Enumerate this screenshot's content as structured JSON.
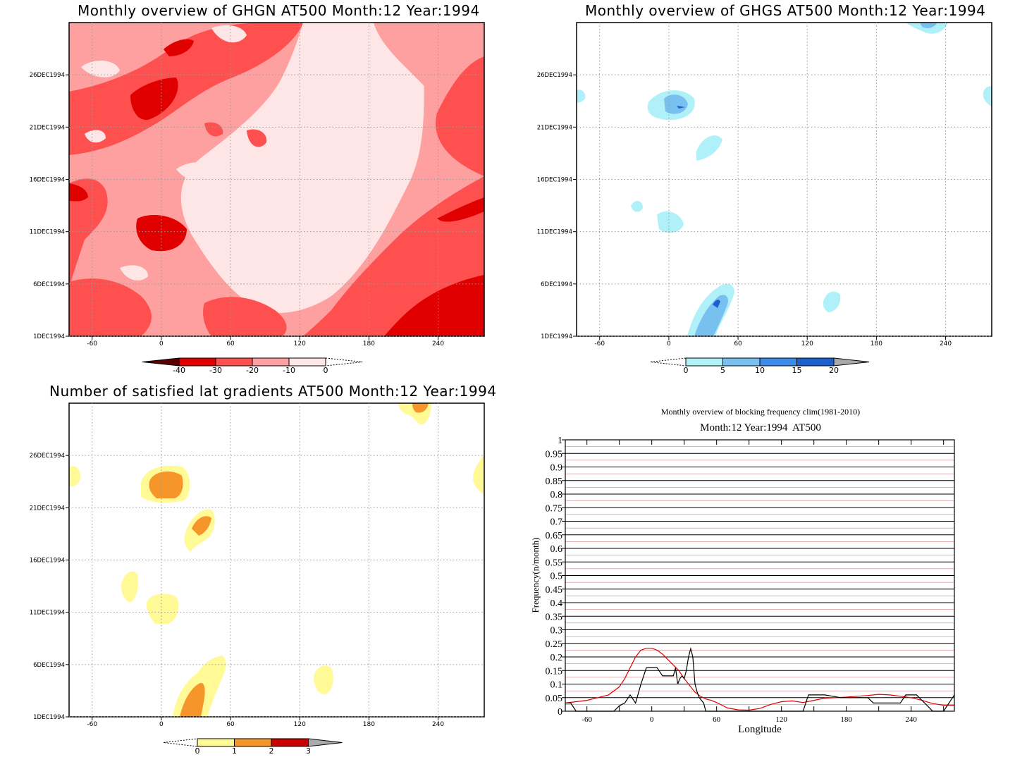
{
  "panels": {
    "ghgn": {
      "title": "Monthly overview of GHGN AT500 Month:12 Year:1994",
      "y_ticks": [
        "1DEC1994",
        "6DEC1994",
        "11DEC1994",
        "16DEC1994",
        "21DEC1994",
        "26DEC1994"
      ],
      "x_ticks": [
        "-60",
        "0",
        "60",
        "120",
        "180",
        "240"
      ],
      "colorbar": [
        "-40",
        "-30",
        "-20",
        "-10",
        "0"
      ],
      "colors": [
        "#5a0000",
        "#e00000",
        "#ff5050",
        "#ffa0a0",
        "#ffe6e6"
      ]
    },
    "ghgs": {
      "title": "Monthly overview of GHGS AT500 Month:12 Year:1994",
      "y_ticks": [
        "1DEC1994",
        "6DEC1994",
        "11DEC1994",
        "16DEC1994",
        "21DEC1994",
        "26DEC1994"
      ],
      "x_ticks": [
        "-60",
        "0",
        "60",
        "120",
        "180",
        "240"
      ],
      "colorbar": [
        "0",
        "5",
        "10",
        "15",
        "20"
      ],
      "colors": [
        "#b0f0f8",
        "#78c0f0",
        "#3a8cec",
        "#1c60d0",
        "#aaaaaa"
      ]
    },
    "lat": {
      "title": "Number of satisfied lat gradients AT500 Month:12 Year:1994",
      "y_ticks": [
        "1DEC1994",
        "6DEC1994",
        "11DEC1994",
        "16DEC1994",
        "21DEC1994",
        "26DEC1994"
      ],
      "x_ticks": [
        "-60",
        "0",
        "60",
        "120",
        "180",
        "240"
      ],
      "colorbar": [
        "0",
        "1",
        "2",
        "3"
      ],
      "colors": [
        "#fffa96",
        "#f6962a",
        "#c80000",
        "#aaaaaa"
      ]
    }
  },
  "chart_data": {
    "type": "line",
    "title": "Monthly overview of blocking frequency clim(1981-2010)",
    "subtitle": "Month:12 Year:1994  AT500",
    "xlabel": "Longitude",
    "ylabel": "Frequency(n/month)",
    "xlim": [
      -80,
      280
    ],
    "ylim": [
      0,
      1
    ],
    "x_ticks": [
      "-60",
      "0",
      "60",
      "120",
      "180",
      "240"
    ],
    "y_ticks": [
      "0",
      "0.05",
      "0.1",
      "0.15",
      "0.2",
      "0.25",
      "0.3",
      "0.35",
      "0.4",
      "0.45",
      "0.5",
      "0.55",
      "0.6",
      "0.65",
      "0.7",
      "0.75",
      "0.8",
      "0.85",
      "0.9",
      "0.95",
      "1"
    ],
    "grid": true,
    "series": [
      {
        "color": "#e00000",
        "x": [
          -80,
          -70,
          -60,
          -50,
          -40,
          -30,
          -25,
          -20,
          -15,
          -10,
          -5,
          0,
          5,
          10,
          15,
          20,
          25,
          30,
          35,
          40,
          45,
          50,
          55,
          60,
          65,
          70,
          80,
          90,
          100,
          110,
          120,
          130,
          140,
          150,
          160,
          170,
          180,
          190,
          200,
          210,
          220,
          230,
          240,
          250,
          260,
          270,
          280
        ],
        "y": [
          0.03,
          0.035,
          0.04,
          0.05,
          0.06,
          0.09,
          0.12,
          0.16,
          0.2,
          0.225,
          0.232,
          0.232,
          0.225,
          0.21,
          0.19,
          0.17,
          0.15,
          0.12,
          0.095,
          0.07,
          0.055,
          0.045,
          0.04,
          0.032,
          0.022,
          0.012,
          0.005,
          0.004,
          0.01,
          0.025,
          0.035,
          0.038,
          0.032,
          0.04,
          0.048,
          0.05,
          0.052,
          0.055,
          0.058,
          0.062,
          0.06,
          0.055,
          0.05,
          0.04,
          0.028,
          0.022,
          0.022
        ]
      },
      {
        "color": "#000000",
        "x": [
          -80,
          -75,
          -70,
          -65,
          -60,
          -50,
          -40,
          -35,
          -30,
          -25,
          -20,
          -15,
          -10,
          -5,
          0,
          5,
          10,
          15,
          20,
          22,
          24,
          26,
          28,
          30,
          32,
          34,
          36,
          38,
          40,
          42,
          44,
          46,
          48,
          50,
          55,
          60,
          140,
          145,
          150,
          160,
          175,
          180,
          200,
          205,
          210,
          215,
          225,
          230,
          235,
          240,
          245,
          250,
          260,
          270,
          275,
          280
        ],
        "y": [
          0.03,
          0.03,
          0.0,
          0.0,
          0.0,
          0.0,
          0.0,
          0.0,
          0.02,
          0.03,
          0.06,
          0.03,
          0.1,
          0.16,
          0.16,
          0.16,
          0.13,
          0.13,
          0.13,
          0.16,
          0.1,
          0.12,
          0.13,
          0.12,
          0.15,
          0.2,
          0.23,
          0.2,
          0.1,
          0.07,
          0.05,
          0.04,
          0.03,
          0.0,
          0.0,
          0.0,
          0.0,
          0.06,
          0.06,
          0.06,
          0.05,
          0.05,
          0.05,
          0.03,
          0.03,
          0.03,
          0.03,
          0.03,
          0.06,
          0.06,
          0.06,
          0.04,
          0.0,
          0.0,
          0.03,
          0.06
        ]
      }
    ]
  }
}
